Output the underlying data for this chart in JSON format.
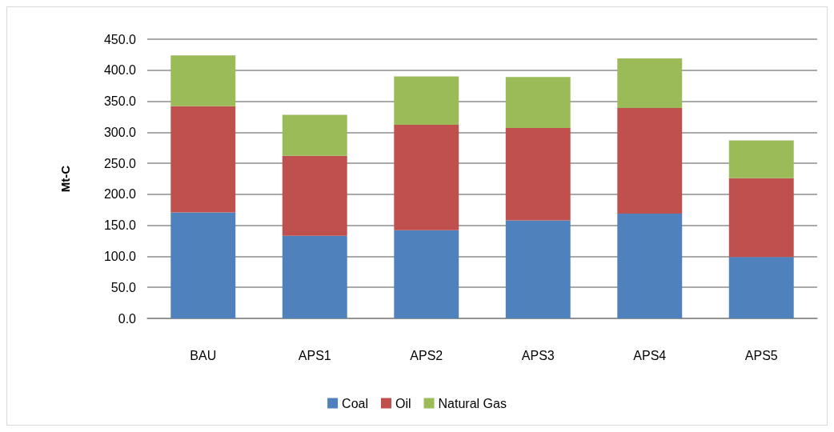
{
  "chart_data": {
    "type": "bar",
    "stacked": true,
    "ylabel": "Mt-C",
    "categories": [
      "BAU",
      "APS1",
      "APS2",
      "APS3",
      "APS4",
      "APS5"
    ],
    "series": [
      {
        "name": "Coal",
        "color": "#4f81bd",
        "values": [
          171,
          133,
          142,
          158,
          169,
          99
        ]
      },
      {
        "name": "Oil",
        "color": "#c0504d",
        "values": [
          171,
          129,
          170,
          149,
          170,
          127
        ]
      },
      {
        "name": "Natural Gas",
        "color": "#9bbb59",
        "values": [
          82,
          66,
          78,
          82,
          80,
          61
        ]
      }
    ],
    "ylim": [
      0,
      450
    ],
    "yticks": [
      {
        "value": 0,
        "label": "0.0"
      },
      {
        "value": 50,
        "label": "50.0"
      },
      {
        "value": 100,
        "label": "100.0"
      },
      {
        "value": 150,
        "label": "150.0"
      },
      {
        "value": 200,
        "label": "200.0"
      },
      {
        "value": 250,
        "label": "250.0"
      },
      {
        "value": 300,
        "label": "300.0"
      },
      {
        "value": 350,
        "label": "350.0"
      },
      {
        "value": 400,
        "label": "400.0"
      },
      {
        "value": 450,
        "label": "450.0"
      }
    ],
    "grid": "y",
    "legend": "bottom"
  }
}
